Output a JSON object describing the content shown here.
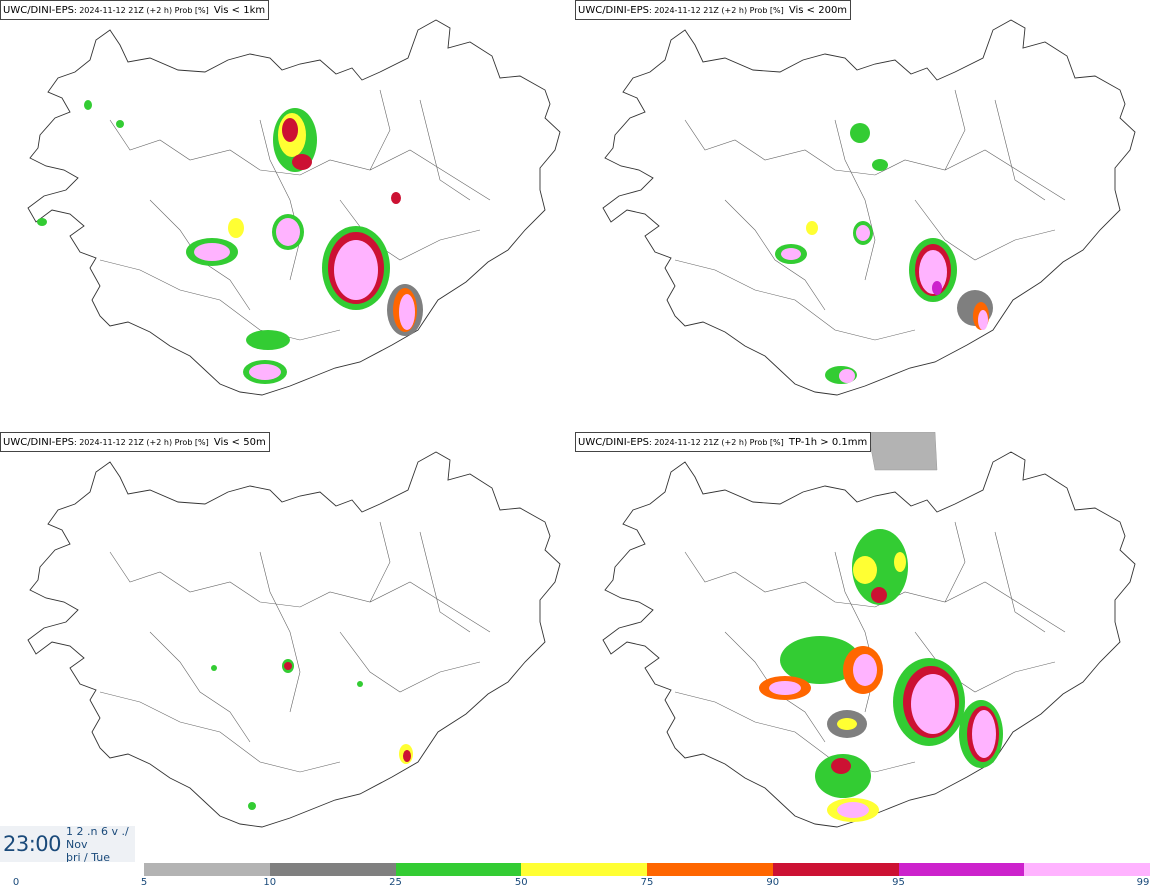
{
  "panels": [
    {
      "model": "UWC/DINI-EPS",
      "meta": ": 2024-11-12 21Z (+2 h) Prob [%]",
      "param": "Vis < 1km"
    },
    {
      "model": "UWC/DINI-EPS",
      "meta": ": 2024-11-12 21Z (+2 h) Prob [%]",
      "param": "Vis < 200m"
    },
    {
      "model": "UWC/DINI-EPS",
      "meta": ": 2024-11-12 21Z (+2 h) Prob [%]",
      "param": "Vis < 50m"
    },
    {
      "model": "UWC/DINI-EPS",
      "meta": ": 2024-11-12 21Z (+2 h) Prob [%]",
      "param": "TP-1h > 0.1mm"
    }
  ],
  "timestamp": {
    "time": "23:00",
    "line1": "1 2 .n 6 v ./",
    "line2": "Nov",
    "line3": "þri / Tue"
  },
  "legend": {
    "ticks": [
      "0",
      "5",
      "10",
      "25",
      "50",
      "75",
      "90",
      "95",
      "99"
    ],
    "colors": [
      "#b3b3b3",
      "#7f7f7f",
      "#33cc33",
      "#ffff33",
      "#ff6600",
      "#cc1133",
      "#cc22cc",
      "#ffb3ff"
    ]
  }
}
